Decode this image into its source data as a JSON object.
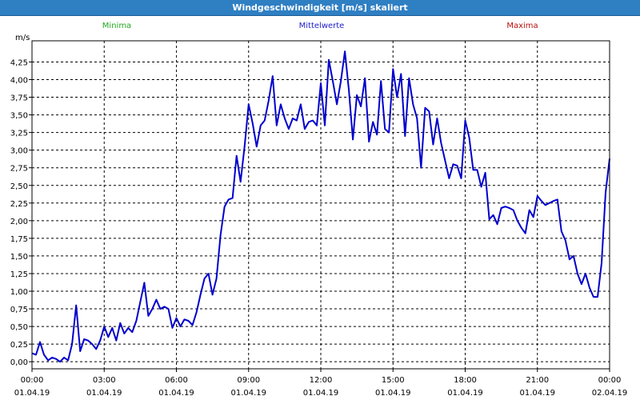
{
  "window": {
    "title": "Windgeschwindigkeit [m/s] skaliert"
  },
  "legend": [
    {
      "label": "Minima",
      "color": "#22aa22"
    },
    {
      "label": "Mittelwerte",
      "color": "#2222cc"
    },
    {
      "label": "Maxima",
      "color": "#bb1111"
    }
  ],
  "chart_data": {
    "type": "line",
    "title": "Windgeschwindigkeit [m/s] skaliert",
    "ylabel": "m/s",
    "xlabel": "",
    "ylim": [
      -0.1,
      4.55
    ],
    "xlim": [
      "01.04.19 00:00",
      "02.04.19 00:00"
    ],
    "grid": true,
    "yticks": [
      "0,00",
      "0,25",
      "0,50",
      "0,75",
      "1,00",
      "1,25",
      "1,50",
      "1,75",
      "2,00",
      "2,25",
      "2,50",
      "2,75",
      "3,00",
      "3,25",
      "3,50",
      "3,75",
      "4,00",
      "4,25"
    ],
    "xticks": [
      {
        "time": "00:00",
        "date": "01.04.19"
      },
      {
        "time": "03:00",
        "date": "01.04.19"
      },
      {
        "time": "06:00",
        "date": "01.04.19"
      },
      {
        "time": "09:00",
        "date": "01.04.19"
      },
      {
        "time": "12:00",
        "date": "01.04.19"
      },
      {
        "time": "15:00",
        "date": "01.04.19"
      },
      {
        "time": "18:00",
        "date": "01.04.19"
      },
      {
        "time": "21:00",
        "date": "01.04.19"
      },
      {
        "time": "00:00",
        "date": "02.04.19"
      }
    ],
    "series": [
      {
        "name": "Mittelwerte",
        "color": "#0000cc",
        "x": [
          "00:00",
          "00:10",
          "00:20",
          "00:30",
          "00:40",
          "00:50",
          "01:00",
          "01:10",
          "01:20",
          "01:30",
          "01:40",
          "01:50",
          "02:00",
          "02:10",
          "02:20",
          "02:30",
          "02:40",
          "02:50",
          "03:00",
          "03:10",
          "03:20",
          "03:30",
          "03:40",
          "03:50",
          "04:00",
          "04:10",
          "04:20",
          "04:30",
          "04:40",
          "04:50",
          "05:00",
          "05:10",
          "05:20",
          "05:30",
          "05:40",
          "05:50",
          "06:00",
          "06:10",
          "06:20",
          "06:30",
          "06:40",
          "06:50",
          "07:00",
          "07:10",
          "07:20",
          "07:30",
          "07:40",
          "07:50",
          "08:00",
          "08:10",
          "08:20",
          "08:30",
          "08:40",
          "08:50",
          "09:00",
          "09:10",
          "09:20",
          "09:30",
          "09:40",
          "09:50",
          "10:00",
          "10:10",
          "10:20",
          "10:30",
          "10:40",
          "10:50",
          "11:00",
          "11:10",
          "11:20",
          "11:30",
          "11:40",
          "11:50",
          "12:00",
          "12:10",
          "12:20",
          "12:30",
          "12:40",
          "12:50",
          "13:00",
          "13:10",
          "13:20",
          "13:30",
          "13:40",
          "13:50",
          "14:00",
          "14:10",
          "14:20",
          "14:30",
          "14:40",
          "14:50",
          "15:00",
          "15:10",
          "15:20",
          "15:30",
          "15:40",
          "15:50",
          "16:00",
          "16:10",
          "16:20",
          "16:30",
          "16:40",
          "16:50",
          "17:00",
          "17:10",
          "17:20",
          "17:30",
          "17:40",
          "17:50",
          "18:00",
          "18:10",
          "18:20",
          "18:30",
          "18:40",
          "18:50",
          "19:00",
          "19:10",
          "19:20",
          "19:30",
          "19:40",
          "19:50",
          "20:00",
          "20:10",
          "20:20",
          "20:30",
          "20:40",
          "20:50",
          "21:00",
          "21:10",
          "21:20",
          "21:30",
          "21:40",
          "21:50",
          "22:00",
          "22:10",
          "22:20",
          "22:30",
          "22:40",
          "22:50",
          "23:00",
          "23:10",
          "23:20",
          "23:30",
          "23:40",
          "23:50",
          "24:00"
        ],
        "values": [
          0.12,
          0.1,
          0.28,
          0.1,
          0.02,
          0.06,
          0.04,
          0.0,
          0.06,
          0.02,
          0.25,
          0.8,
          0.15,
          0.32,
          0.3,
          0.25,
          0.18,
          0.3,
          0.5,
          0.35,
          0.48,
          0.3,
          0.55,
          0.4,
          0.48,
          0.42,
          0.58,
          0.85,
          1.12,
          0.65,
          0.75,
          0.88,
          0.75,
          0.78,
          0.75,
          0.48,
          0.62,
          0.5,
          0.6,
          0.58,
          0.52,
          0.7,
          0.95,
          1.18,
          1.25,
          0.95,
          1.18,
          1.8,
          2.2,
          2.3,
          2.32,
          2.92,
          2.55,
          3.05,
          3.65,
          3.38,
          3.05,
          3.35,
          3.42,
          3.7,
          4.05,
          3.35,
          3.65,
          3.45,
          3.3,
          3.45,
          3.42,
          3.65,
          3.3,
          3.4,
          3.42,
          3.35,
          3.95,
          3.35,
          4.28,
          3.98,
          3.65,
          3.98,
          4.4,
          3.85,
          3.15,
          3.78,
          3.62,
          4.02,
          3.12,
          3.4,
          3.22,
          3.98,
          3.3,
          3.25,
          4.15,
          3.75,
          4.08,
          3.2,
          4.02,
          3.65,
          3.45,
          2.75,
          3.6,
          3.55,
          3.08,
          3.45,
          3.1,
          2.85,
          2.6,
          2.8,
          2.78,
          2.6,
          3.42,
          3.18,
          2.72,
          2.72,
          2.48,
          2.68,
          2.02,
          2.08,
          1.95,
          2.18,
          2.2,
          2.18,
          2.15,
          2.0,
          1.9,
          1.82,
          2.15,
          2.05,
          2.35,
          2.28,
          2.22,
          2.25,
          2.28,
          2.3,
          1.85,
          1.72,
          1.45,
          1.5,
          1.25,
          1.1,
          1.25,
          1.05,
          0.92,
          0.92,
          1.4,
          2.4,
          2.88
        ]
      }
    ]
  }
}
